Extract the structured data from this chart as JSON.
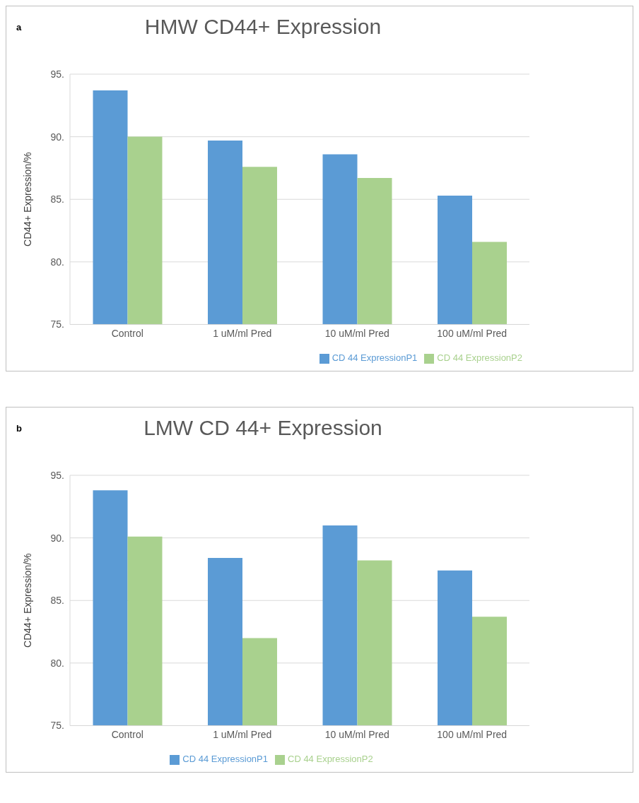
{
  "chart_data": [
    {
      "type": "bar",
      "title": "HMW CD44+ Expression",
      "ylabel": "CD44+ Expression/%",
      "annotations": [
        "a"
      ],
      "categories": [
        "Control",
        "1 uM/ml Pred",
        "10 uM/ml Pred",
        "100 uM/ml Pred"
      ],
      "series": [
        {
          "name": "CD 44 ExpressionP1",
          "color": "#5b9bd5",
          "values": [
            93.7,
            89.7,
            88.6,
            85.3
          ]
        },
        {
          "name": "CD 44 ExpressionP2",
          "color": "#a9d18e",
          "values": [
            90.0,
            87.6,
            86.7,
            81.6
          ]
        }
      ],
      "ylim": [
        75,
        95
      ],
      "yticks": [
        {
          "value": 75,
          "label": "75."
        },
        {
          "value": 80,
          "label": "80."
        },
        {
          "value": 85,
          "label": "85."
        },
        {
          "value": 90,
          "label": "90."
        },
        {
          "value": 95,
          "label": "95."
        }
      ],
      "grid": "y",
      "legend": "bottom right"
    },
    {
      "type": "bar",
      "title": "LMW CD 44+ Expression",
      "ylabel": "CD44+ Expression/%",
      "annotations": [
        "b"
      ],
      "categories": [
        "Control",
        "1 uM/ml Pred",
        "10 uM/ml Pred",
        "100 uM/ml Pred"
      ],
      "series": [
        {
          "name": "CD 44 ExpressionP1",
          "color": "#5b9bd5",
          "values": [
            93.8,
            88.4,
            91.0,
            87.4
          ]
        },
        {
          "name": "CD 44 ExpressionP2",
          "color": "#a9d18e",
          "values": [
            90.1,
            82.0,
            88.2,
            83.7
          ]
        }
      ],
      "ylim": [
        75,
        95
      ],
      "yticks": [
        {
          "value": 75,
          "label": "75."
        },
        {
          "value": 80,
          "label": "80."
        },
        {
          "value": 85,
          "label": "85."
        },
        {
          "value": 90,
          "label": "90."
        },
        {
          "value": 95,
          "label": "95."
        }
      ],
      "grid": "y",
      "legend": "bottom"
    }
  ]
}
